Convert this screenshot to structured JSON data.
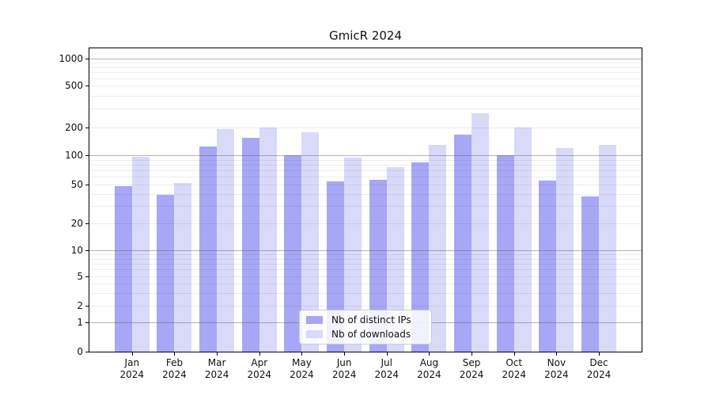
{
  "title": "GmicR 2024",
  "legend": {
    "items": [
      {
        "label": "Nb of distinct IPs",
        "color": "#a7a7f5"
      },
      {
        "label": "Nb of downloads",
        "color": "#d9d9fa"
      }
    ]
  },
  "chart_data": {
    "type": "bar",
    "title": "GmicR 2024",
    "categories": [
      "Jan",
      "Feb",
      "Mar",
      "Apr",
      "May",
      "Jun",
      "Jul",
      "Aug",
      "Sep",
      "Oct",
      "Nov",
      "Dec"
    ],
    "year": "2024",
    "series": [
      {
        "name": "Nb of distinct IPs",
        "color": "#a7a7f5",
        "values": [
          48,
          39,
          125,
          155,
          100,
          54,
          56,
          85,
          165,
          100,
          55,
          38
        ]
      },
      {
        "name": "Nb of downloads",
        "color": "#d9d9fa",
        "values": [
          97,
          52,
          190,
          200,
          175,
          95,
          75,
          130,
          270,
          200,
          120,
          130
        ]
      }
    ],
    "yticks": [
      0,
      1,
      2,
      5,
      10,
      20,
      50,
      100,
      200,
      500,
      1000
    ],
    "minor_gridlines": [
      3,
      4,
      6,
      7,
      8,
      9,
      30,
      40,
      60,
      70,
      80,
      90,
      300,
      400,
      600,
      700,
      800,
      900
    ],
    "ylim": [
      0,
      1000
    ],
    "yscale": "log-with-zero-baseline",
    "grid": "both",
    "legend_position": "lower center",
    "xlabel": "",
    "ylabel": ""
  }
}
